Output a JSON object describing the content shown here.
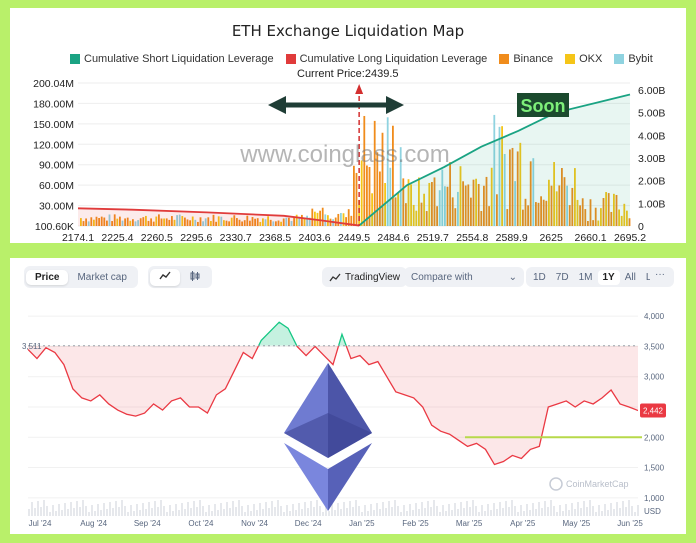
{
  "chart_data": [
    {
      "type": "bar+line",
      "title": "ETH Exchange Liquidation Map",
      "legend": [
        {
          "name": "Cumulative Short Liquidation Leverage",
          "color": "#1aa383"
        },
        {
          "name": "Cumulative Long Liquidation Leverage",
          "color": "#e03b3b"
        },
        {
          "name": "Binance",
          "color": "#f08c1c"
        },
        {
          "name": "OKX",
          "color": "#f5c518"
        },
        {
          "name": "Bybit",
          "color": "#8fd3e0"
        }
      ],
      "current_price_label": "Current Price:2439.5",
      "current_price": 2439.5,
      "x_ticks": [
        "2174.1",
        "2225.4",
        "2260.5",
        "2295.6",
        "2330.7",
        "2368.5",
        "2403.6",
        "2449.5",
        "2484.6",
        "2519.7",
        "2554.8",
        "2589.9",
        "2625",
        "2660.1",
        "2695.2"
      ],
      "y_left_ticks": [
        "200.04M",
        "180.00M",
        "150.00M",
        "120.00M",
        "90.00M",
        "60.00M",
        "30.00M",
        "100.60K"
      ],
      "y_left_range": [
        0,
        200000000
      ],
      "y_right_ticks": [
        "6.00B",
        "5.00B",
        "4.00B",
        "3.00B",
        "2.00B",
        "1.00B",
        "0"
      ],
      "y_right_range": [
        0,
        6000000000
      ],
      "long_curve": {
        "x": [
          2174.1,
          2225.4,
          2295.6,
          2368.5,
          2403.6,
          2439.5
        ],
        "y": [
          0.78,
          0.72,
          0.6,
          0.45,
          0.25,
          0.02
        ]
      },
      "short_curve": {
        "x": [
          2439.5,
          2484.6,
          2519.7,
          2554.8,
          2589.9,
          2625,
          2660.1,
          2695.2
        ],
        "y": [
          0.02,
          1.8,
          2.6,
          3.5,
          4.2,
          5.0,
          5.4,
          5.8
        ]
      },
      "watermark": "www.coinglass.com",
      "annotation": "Soon"
    },
    {
      "type": "area",
      "series_name": "ETH price",
      "x_ticks": [
        "Jul '24",
        "Aug '24",
        "Sep '24",
        "Oct '24",
        "Nov '24",
        "Dec '24",
        "Jan '25",
        "Feb '25",
        "Mar '25",
        "Apr '25",
        "May '25",
        "Jun '25"
      ],
      "y_ticks": [
        "4,000",
        "3,500",
        "3,000",
        "2,500",
        "2,000",
        "1,500",
        "1,000"
      ],
      "y_unit": "USD",
      "y_range": [
        700,
        4300
      ],
      "reference_value": 3511,
      "reference_label": "3,511",
      "support_level": 2000,
      "last_value": 2442,
      "last_label": "2,442",
      "prices": [
        3450,
        3300,
        3480,
        3400,
        3200,
        2800,
        2650,
        2600,
        2700,
        2550,
        2450,
        2380,
        2350,
        2400,
        2550,
        2450,
        2600,
        2650,
        2500,
        2500,
        2400,
        2700,
        2800,
        3100,
        3400,
        3300,
        3600,
        3750,
        3900,
        3800,
        3500,
        3350,
        3500,
        3350,
        3200,
        3700,
        3300,
        3350,
        3200,
        3250,
        3000,
        2750,
        2700,
        2650,
        2500,
        2200,
        2100,
        2050,
        1950,
        1850,
        1900,
        1800,
        1550,
        1600,
        1700,
        1650,
        1800,
        1850,
        2500,
        2550,
        2600,
        2500,
        2600,
        2550,
        2650,
        2780,
        2550,
        2500,
        2442
      ],
      "watermark": "CoinMarketCap"
    }
  ],
  "toolbar": {
    "price_tab": "Price",
    "market_cap_tab": "Market cap",
    "line_icon": "line-chart-icon",
    "candle_icon": "candlestick-icon",
    "tradingview_label": "TradingView",
    "compare_label": "Compare with",
    "ranges": [
      "1D",
      "7D",
      "1M",
      "1Y",
      "All",
      "LOG"
    ],
    "active_range": "1Y",
    "more_label": "···"
  },
  "colors": {
    "background": "#b9f06a",
    "short_line": "#1aa383",
    "long_line": "#e03b3b",
    "price_down": "#ea3943",
    "price_up": "#16c784",
    "support_line": "#b7d94a"
  }
}
